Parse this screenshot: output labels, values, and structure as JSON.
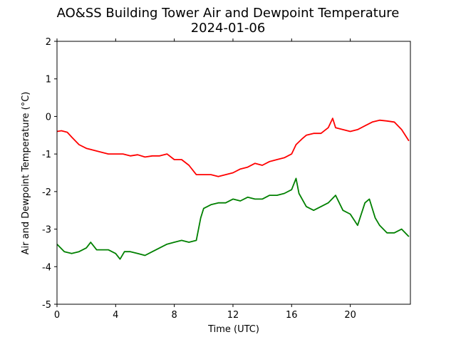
{
  "chart_data": {
    "type": "line",
    "title": "AO&SS Building Tower Air and Dewpoint Temperature",
    "subtitle": "2024-01-06",
    "xlabel": "Time (UTC)",
    "ylabel": "Air and Dewpoint Temperature (°C)",
    "xlim": [
      0,
      24.1
    ],
    "ylim": [
      -5,
      2
    ],
    "xticks": [
      0,
      4,
      8,
      12,
      16,
      20
    ],
    "yticks": [
      -5,
      -4,
      -3,
      -2,
      -1,
      0,
      1,
      2
    ],
    "grid": false,
    "series": [
      {
        "color": "#ff0000",
        "x": [
          0,
          0.3,
          0.7,
          1.0,
          1.5,
          2.0,
          2.5,
          3.0,
          3.5,
          4.0,
          4.5,
          5.0,
          5.5,
          6.0,
          6.5,
          7.0,
          7.5,
          8.0,
          8.5,
          9.0,
          9.5,
          10.0,
          10.5,
          11.0,
          11.5,
          12.0,
          12.5,
          13.0,
          13.5,
          14.0,
          14.5,
          15.0,
          15.5,
          16.0,
          16.3,
          16.7,
          17.0,
          17.5,
          18.0,
          18.5,
          18.8,
          19.0,
          19.5,
          20.0,
          20.5,
          21.0,
          21.5,
          22.0,
          22.5,
          23.0,
          23.5,
          24.0
        ],
        "y": [
          -0.4,
          -0.38,
          -0.42,
          -0.55,
          -0.75,
          -0.85,
          -0.9,
          -0.95,
          -1.0,
          -1.0,
          -1.0,
          -1.05,
          -1.02,
          -1.08,
          -1.05,
          -1.05,
          -1.0,
          -1.15,
          -1.15,
          -1.3,
          -1.55,
          -1.55,
          -1.55,
          -1.6,
          -1.55,
          -1.5,
          -1.4,
          -1.35,
          -1.25,
          -1.3,
          -1.2,
          -1.15,
          -1.1,
          -1.0,
          -0.75,
          -0.6,
          -0.5,
          -0.45,
          -0.45,
          -0.3,
          -0.05,
          -0.3,
          -0.35,
          -0.4,
          -0.35,
          -0.25,
          -0.15,
          -0.1,
          -0.12,
          -0.15,
          -0.35,
          -0.65
        ]
      },
      {
        "color": "#008000",
        "x": [
          0,
          0.5,
          1.0,
          1.5,
          2.0,
          2.3,
          2.7,
          3.0,
          3.5,
          4.0,
          4.3,
          4.6,
          5.0,
          5.5,
          6.0,
          6.5,
          7.0,
          7.5,
          8.0,
          8.5,
          9.0,
          9.5,
          9.8,
          10.0,
          10.5,
          11.0,
          11.5,
          12.0,
          12.5,
          13.0,
          13.5,
          14.0,
          14.5,
          15.0,
          15.5,
          16.0,
          16.3,
          16.5,
          17.0,
          17.5,
          18.0,
          18.5,
          19.0,
          19.5,
          20.0,
          20.5,
          21.0,
          21.3,
          21.7,
          22.0,
          22.5,
          23.0,
          23.5,
          24.0
        ],
        "y": [
          -3.4,
          -3.6,
          -3.65,
          -3.6,
          -3.5,
          -3.35,
          -3.55,
          -3.55,
          -3.55,
          -3.65,
          -3.8,
          -3.6,
          -3.6,
          -3.65,
          -3.7,
          -3.6,
          -3.5,
          -3.4,
          -3.35,
          -3.3,
          -3.35,
          -3.3,
          -2.7,
          -2.45,
          -2.35,
          -2.3,
          -2.3,
          -2.2,
          -2.25,
          -2.15,
          -2.2,
          -2.2,
          -2.1,
          -2.1,
          -2.05,
          -1.95,
          -1.65,
          -2.05,
          -2.4,
          -2.5,
          -2.4,
          -2.3,
          -2.1,
          -2.5,
          -2.6,
          -2.9,
          -2.3,
          -2.2,
          -2.7,
          -2.9,
          -3.1,
          -3.1,
          -3.0,
          -3.2
        ]
      }
    ]
  }
}
